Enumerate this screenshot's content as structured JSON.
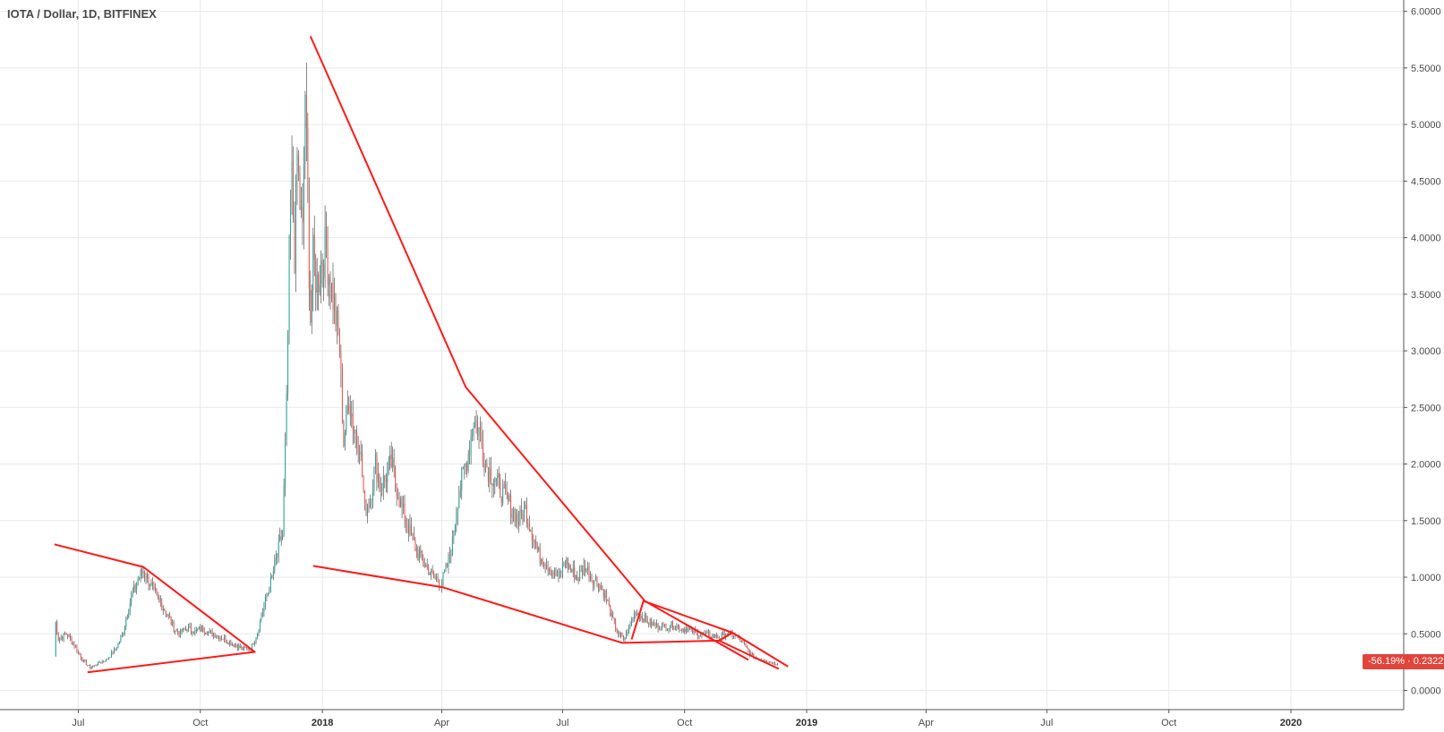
{
  "header": {
    "title": "IOTA / Dollar, 1D, BITFINEX"
  },
  "price_badge": {
    "change": "-56.19%",
    "separator": " · ",
    "price": "0.2322"
  },
  "colors": {
    "up": "#26a69a",
    "down": "#ef5350",
    "wick": "#555555",
    "trendline": "#ff1a1a",
    "grid": "#e8e8e8",
    "badge": "#e0453c"
  },
  "chart_data": {
    "type": "candlestick",
    "title": "IOTA / Dollar, 1D, BITFINEX",
    "interval": "1D",
    "exchange": "BITFINEX",
    "xlabel": "",
    "ylabel": "",
    "ylim": [
      -0.17,
      6.1
    ],
    "y_ticks": [
      "6.0000",
      "5.5000",
      "5.0000",
      "4.5000",
      "4.0000",
      "3.5000",
      "3.0000",
      "2.5000",
      "2.0000",
      "1.5000",
      "1.0000",
      "0.5000",
      "0.0000"
    ],
    "x_ticks": [
      {
        "label": "Jul",
        "date": "2017-07-01",
        "bold": false
      },
      {
        "label": "Oct",
        "date": "2017-10-01",
        "bold": false
      },
      {
        "label": "2018",
        "date": "2018-01-01",
        "bold": true
      },
      {
        "label": "Apr",
        "date": "2018-04-01",
        "bold": false
      },
      {
        "label": "Jul",
        "date": "2018-07-01",
        "bold": false
      },
      {
        "label": "Oct",
        "date": "2018-10-01",
        "bold": false
      },
      {
        "label": "2019",
        "date": "2019-01-01",
        "bold": true
      },
      {
        "label": "Apr",
        "date": "2019-04-01",
        "bold": false
      },
      {
        "label": "Jul",
        "date": "2019-07-01",
        "bold": false
      },
      {
        "label": "Oct",
        "date": "2019-10-01",
        "bold": false
      },
      {
        "label": "2020",
        "date": "2020-01-01",
        "bold": true
      }
    ],
    "x_range": [
      "2017-05-03",
      "2020-03-26"
    ],
    "grid": true,
    "last_price": 0.2322,
    "change_percent": -56.19,
    "price_path": [
      [
        "2017-06-13",
        0.3
      ],
      [
        "2017-06-14",
        0.6
      ],
      [
        "2017-06-16",
        0.45
      ],
      [
        "2017-06-22",
        0.5
      ],
      [
        "2017-06-28",
        0.4
      ],
      [
        "2017-07-04",
        0.27
      ],
      [
        "2017-07-10",
        0.2
      ],
      [
        "2017-07-16",
        0.24
      ],
      [
        "2017-07-22",
        0.27
      ],
      [
        "2017-07-28",
        0.35
      ],
      [
        "2017-08-03",
        0.48
      ],
      [
        "2017-08-09",
        0.78
      ],
      [
        "2017-08-15",
        0.98
      ],
      [
        "2017-08-19",
        1.06
      ],
      [
        "2017-08-24",
        0.95
      ],
      [
        "2017-08-30",
        0.8
      ],
      [
        "2017-09-05",
        0.7
      ],
      [
        "2017-09-11",
        0.55
      ],
      [
        "2017-09-15",
        0.5
      ],
      [
        "2017-09-21",
        0.55
      ],
      [
        "2017-09-27",
        0.52
      ],
      [
        "2017-10-03",
        0.55
      ],
      [
        "2017-10-09",
        0.5
      ],
      [
        "2017-10-15",
        0.48
      ],
      [
        "2017-10-21",
        0.44
      ],
      [
        "2017-10-27",
        0.4
      ],
      [
        "2017-11-02",
        0.37
      ],
      [
        "2017-11-08",
        0.36
      ],
      [
        "2017-11-13",
        0.52
      ],
      [
        "2017-11-18",
        0.75
      ],
      [
        "2017-11-23",
        0.95
      ],
      [
        "2017-11-28",
        1.2
      ],
      [
        "2017-12-02",
        1.4
      ],
      [
        "2017-12-05",
        2.5
      ],
      [
        "2017-12-07",
        3.8
      ],
      [
        "2017-12-09",
        4.5
      ],
      [
        "2017-12-11",
        3.9
      ],
      [
        "2017-12-13",
        4.7
      ],
      [
        "2017-12-15",
        4.3
      ],
      [
        "2017-12-17",
        4.0
      ],
      [
        "2017-12-19",
        5.3
      ],
      [
        "2017-12-21",
        4.2
      ],
      [
        "2017-12-23",
        3.3
      ],
      [
        "2017-12-25",
        3.8
      ],
      [
        "2017-12-28",
        3.6
      ],
      [
        "2018-01-01",
        3.85
      ],
      [
        "2018-01-04",
        3.9
      ],
      [
        "2018-01-07",
        3.6
      ],
      [
        "2018-01-10",
        3.4
      ],
      [
        "2018-01-14",
        3.0
      ],
      [
        "2018-01-17",
        2.2
      ],
      [
        "2018-01-21",
        2.6
      ],
      [
        "2018-01-25",
        2.3
      ],
      [
        "2018-01-29",
        2.2
      ],
      [
        "2018-02-02",
        1.6
      ],
      [
        "2018-02-06",
        1.7
      ],
      [
        "2018-02-10",
        2.0
      ],
      [
        "2018-02-14",
        1.8
      ],
      [
        "2018-02-18",
        1.9
      ],
      [
        "2018-02-22",
        2.0
      ],
      [
        "2018-02-26",
        1.8
      ],
      [
        "2018-03-02",
        1.6
      ],
      [
        "2018-03-08",
        1.4
      ],
      [
        "2018-03-14",
        1.2
      ],
      [
        "2018-03-20",
        1.1
      ],
      [
        "2018-03-26",
        1.0
      ],
      [
        "2018-04-01",
        0.95
      ],
      [
        "2018-04-05",
        1.1
      ],
      [
        "2018-04-09",
        1.3
      ],
      [
        "2018-04-13",
        1.7
      ],
      [
        "2018-04-17",
        1.9
      ],
      [
        "2018-04-21",
        2.1
      ],
      [
        "2018-04-25",
        2.4
      ],
      [
        "2018-04-29",
        2.3
      ],
      [
        "2018-05-04",
        2.0
      ],
      [
        "2018-05-09",
        1.9
      ],
      [
        "2018-05-14",
        1.8
      ],
      [
        "2018-05-19",
        1.7
      ],
      [
        "2018-05-24",
        1.6
      ],
      [
        "2018-05-29",
        1.5
      ],
      [
        "2018-06-03",
        1.6
      ],
      [
        "2018-06-08",
        1.4
      ],
      [
        "2018-06-13",
        1.2
      ],
      [
        "2018-06-18",
        1.15
      ],
      [
        "2018-06-23",
        1.05
      ],
      [
        "2018-06-28",
        1.0
      ],
      [
        "2018-07-03",
        1.15
      ],
      [
        "2018-07-08",
        1.05
      ],
      [
        "2018-07-13",
        1.0
      ],
      [
        "2018-07-18",
        1.1
      ],
      [
        "2018-07-23",
        1.0
      ],
      [
        "2018-07-28",
        0.95
      ],
      [
        "2018-08-02",
        0.85
      ],
      [
        "2018-08-07",
        0.65
      ],
      [
        "2018-08-12",
        0.5
      ],
      [
        "2018-08-16",
        0.45
      ],
      [
        "2018-08-20",
        0.55
      ],
      [
        "2018-08-25",
        0.7
      ],
      [
        "2018-08-30",
        0.65
      ],
      [
        "2018-09-04",
        0.6
      ],
      [
        "2018-09-10",
        0.57
      ],
      [
        "2018-09-16",
        0.56
      ],
      [
        "2018-09-22",
        0.58
      ],
      [
        "2018-09-28",
        0.55
      ],
      [
        "2018-10-04",
        0.54
      ],
      [
        "2018-10-10",
        0.5
      ],
      [
        "2018-10-16",
        0.49
      ],
      [
        "2018-10-22",
        0.48
      ],
      [
        "2018-10-28",
        0.47
      ],
      [
        "2018-11-03",
        0.5
      ],
      [
        "2018-11-09",
        0.48
      ],
      [
        "2018-11-15",
        0.4
      ],
      [
        "2018-11-19",
        0.33
      ],
      [
        "2018-11-24",
        0.28
      ],
      [
        "2018-11-30",
        0.27
      ],
      [
        "2018-12-05",
        0.25
      ],
      [
        "2018-12-10",
        0.2322
      ]
    ],
    "trendlines": [
      [
        [
          "2017-06-13",
          1.29
        ],
        [
          "2017-08-19",
          1.09
        ],
        [
          "2017-11-11",
          0.34
        ],
        [
          "2017-07-08",
          0.16
        ]
      ],
      [
        [
          "2017-12-23",
          5.78
        ],
        [
          "2018-04-19",
          2.68
        ],
        [
          "2018-09-01",
          0.79
        ],
        [
          "2018-11-18",
          0.27
        ]
      ],
      [
        [
          "2017-12-25",
          1.1
        ],
        [
          "2018-04-02",
          0.91
        ],
        [
          "2018-08-15",
          0.42
        ],
        [
          "2018-10-27",
          0.44
        ],
        [
          "2018-12-11",
          0.19
        ]
      ],
      [
        [
          "2018-08-22",
          0.45
        ],
        [
          "2018-08-31",
          0.79
        ],
        [
          "2018-11-06",
          0.51
        ],
        [
          "2018-12-18",
          0.21
        ]
      ],
      [
        [
          "2018-10-27",
          0.44
        ],
        [
          "2018-11-06",
          0.51
        ]
      ]
    ]
  }
}
